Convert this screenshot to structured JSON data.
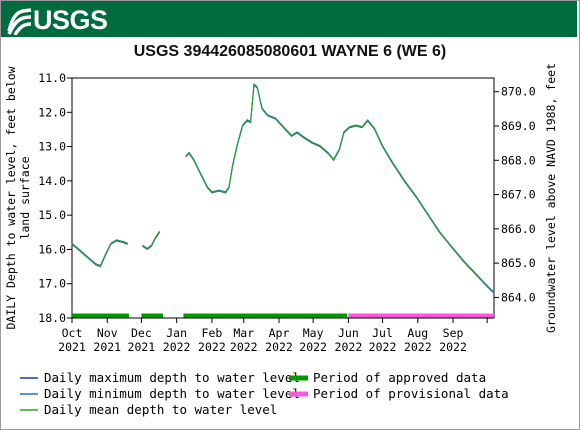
{
  "agency": "USGS",
  "chart_data": {
    "type": "line",
    "title": "USGS 394426085080601 WAYNE 6 (WE 6)",
    "ylabel": "DAILY Depth to water level, feet below land surface",
    "ylabel_lines": [
      "DAILY Depth to water level, feet below",
      "land surface"
    ],
    "y2label": "Groundwater level above NAVD 1988, feet",
    "ylim": [
      18.0,
      11.0
    ],
    "y_inverted": true,
    "y_ticks": [
      "11.0",
      "12.0",
      "13.0",
      "14.0",
      "15.0",
      "16.0",
      "17.0",
      "18.0"
    ],
    "y2lim": [
      863.4,
      870.4
    ],
    "y2_ticks": [
      "864.0",
      "865.0",
      "866.0",
      "867.0",
      "868.0",
      "869.0",
      "870.0"
    ],
    "x_ticks": [
      {
        "month": "Oct",
        "year": "2021"
      },
      {
        "month": "Nov",
        "year": "2021"
      },
      {
        "month": "Dec",
        "year": "2021"
      },
      {
        "month": "Jan",
        "year": "2022"
      },
      {
        "month": "Feb",
        "year": "2022"
      },
      {
        "month": "Mar",
        "year": "2022"
      },
      {
        "month": "Apr",
        "year": "2022"
      },
      {
        "month": "May",
        "year": "2022"
      },
      {
        "month": "Jun",
        "year": "2022"
      },
      {
        "month": "Jul",
        "year": "2022"
      },
      {
        "month": "Aug",
        "year": "2022"
      },
      {
        "month": "Sep",
        "year": "2022"
      }
    ],
    "xlim": [
      "2021-10-01",
      "2022-10-07"
    ],
    "grid": false,
    "series": [
      {
        "name": "Daily maximum depth to water level",
        "color": "#1f3a93",
        "segments": [
          [
            [
              "2021-10-01",
              15.85
            ],
            [
              "2021-10-08",
              16.05
            ],
            [
              "2021-10-15",
              16.25
            ],
            [
              "2021-10-22",
              16.45
            ],
            [
              "2021-10-26",
              16.5
            ],
            [
              "2021-10-30",
              16.2
            ],
            [
              "2021-11-04",
              15.85
            ],
            [
              "2021-11-09",
              15.75
            ],
            [
              "2021-11-15",
              15.8
            ],
            [
              "2021-11-19",
              15.85
            ]
          ],
          [
            [
              "2021-12-02",
              15.9
            ],
            [
              "2021-12-06",
              16.0
            ],
            [
              "2021-12-10",
              15.9
            ],
            [
              "2021-12-13",
              15.7
            ],
            [
              "2021-12-17",
              15.5
            ]
          ],
          [
            [
              "2022-01-09",
              13.3
            ],
            [
              "2022-01-12",
              13.2
            ],
            [
              "2022-01-16",
              13.4
            ],
            [
              "2022-01-22",
              13.8
            ],
            [
              "2022-01-28",
              14.2
            ],
            [
              "2022-02-01",
              14.35
            ],
            [
              "2022-02-07",
              14.3
            ],
            [
              "2022-02-13",
              14.35
            ],
            [
              "2022-02-16",
              14.2
            ],
            [
              "2022-02-19",
              13.6
            ],
            [
              "2022-02-23",
              13.0
            ],
            [
              "2022-02-28",
              12.4
            ],
            [
              "2022-03-04",
              12.25
            ],
            [
              "2022-03-07",
              12.3
            ],
            [
              "2022-03-10",
              11.2
            ],
            [
              "2022-03-13",
              11.3
            ],
            [
              "2022-03-17",
              11.9
            ],
            [
              "2022-03-22",
              12.1
            ],
            [
              "2022-03-29",
              12.2
            ],
            [
              "2022-04-05",
              12.45
            ],
            [
              "2022-04-12",
              12.7
            ],
            [
              "2022-04-17",
              12.6
            ],
            [
              "2022-04-23",
              12.75
            ],
            [
              "2022-04-30",
              12.9
            ],
            [
              "2022-05-07",
              13.0
            ],
            [
              "2022-05-14",
              13.2
            ],
            [
              "2022-05-19",
              13.4
            ],
            [
              "2022-05-24",
              13.1
            ],
            [
              "2022-05-28",
              12.6
            ],
            [
              "2022-06-02",
              12.45
            ],
            [
              "2022-06-08",
              12.4
            ],
            [
              "2022-06-13",
              12.45
            ],
            [
              "2022-06-18",
              12.25
            ],
            [
              "2022-06-24",
              12.5
            ],
            [
              "2022-07-01",
              13.0
            ],
            [
              "2022-07-10",
              13.5
            ],
            [
              "2022-07-20",
              14.0
            ],
            [
              "2022-07-31",
              14.5
            ],
            [
              "2022-08-10",
              15.0
            ],
            [
              "2022-08-20",
              15.5
            ],
            [
              "2022-08-31",
              15.95
            ],
            [
              "2022-09-10",
              16.35
            ],
            [
              "2022-09-20",
              16.7
            ],
            [
              "2022-09-30",
              17.05
            ],
            [
              "2022-10-06",
              17.25
            ]
          ]
        ]
      },
      {
        "name": "Daily minimum depth to water level",
        "color": "#1f77b4",
        "segments": [
          [
            [
              "2021-10-01",
              15.82
            ],
            [
              "2021-10-08",
              16.02
            ],
            [
              "2021-10-15",
              16.22
            ],
            [
              "2021-10-22",
              16.42
            ],
            [
              "2021-10-26",
              16.47
            ],
            [
              "2021-10-30",
              16.17
            ],
            [
              "2021-11-04",
              15.82
            ],
            [
              "2021-11-09",
              15.72
            ],
            [
              "2021-11-15",
              15.77
            ],
            [
              "2021-11-19",
              15.82
            ]
          ],
          [
            [
              "2021-12-02",
              15.87
            ],
            [
              "2021-12-06",
              15.97
            ],
            [
              "2021-12-10",
              15.87
            ],
            [
              "2021-12-13",
              15.67
            ],
            [
              "2021-12-17",
              15.47
            ]
          ],
          [
            [
              "2022-01-09",
              13.27
            ],
            [
              "2022-01-12",
              13.17
            ],
            [
              "2022-01-16",
              13.37
            ],
            [
              "2022-01-22",
              13.77
            ],
            [
              "2022-01-28",
              14.17
            ],
            [
              "2022-02-01",
              14.32
            ],
            [
              "2022-02-07",
              14.27
            ],
            [
              "2022-02-13",
              14.32
            ],
            [
              "2022-02-16",
              14.17
            ],
            [
              "2022-02-19",
              13.57
            ],
            [
              "2022-02-23",
              12.97
            ],
            [
              "2022-02-28",
              12.37
            ],
            [
              "2022-03-04",
              12.22
            ],
            [
              "2022-03-07",
              12.27
            ],
            [
              "2022-03-10",
              11.17
            ],
            [
              "2022-03-13",
              11.27
            ],
            [
              "2022-03-17",
              11.87
            ],
            [
              "2022-03-22",
              12.07
            ],
            [
              "2022-03-29",
              12.17
            ],
            [
              "2022-04-05",
              12.42
            ],
            [
              "2022-04-12",
              12.67
            ],
            [
              "2022-04-17",
              12.57
            ],
            [
              "2022-04-23",
              12.72
            ],
            [
              "2022-04-30",
              12.87
            ],
            [
              "2022-05-07",
              12.97
            ],
            [
              "2022-05-14",
              13.17
            ],
            [
              "2022-05-19",
              13.37
            ],
            [
              "2022-05-24",
              13.07
            ],
            [
              "2022-05-28",
              12.57
            ],
            [
              "2022-06-02",
              12.42
            ],
            [
              "2022-06-08",
              12.37
            ],
            [
              "2022-06-13",
              12.42
            ],
            [
              "2022-06-18",
              12.22
            ],
            [
              "2022-06-24",
              12.47
            ],
            [
              "2022-07-01",
              12.97
            ],
            [
              "2022-07-10",
              13.47
            ],
            [
              "2022-07-20",
              13.97
            ],
            [
              "2022-07-31",
              14.47
            ],
            [
              "2022-08-10",
              14.97
            ],
            [
              "2022-08-20",
              15.47
            ],
            [
              "2022-08-31",
              15.92
            ],
            [
              "2022-09-10",
              16.32
            ],
            [
              "2022-09-20",
              16.67
            ],
            [
              "2022-09-30",
              17.02
            ],
            [
              "2022-10-06",
              17.22
            ]
          ]
        ]
      },
      {
        "name": "Daily mean depth to water level",
        "color": "#2ca02c",
        "segments": [
          [
            [
              "2021-10-01",
              15.84
            ],
            [
              "2021-10-08",
              16.04
            ],
            [
              "2021-10-15",
              16.24
            ],
            [
              "2021-10-22",
              16.44
            ],
            [
              "2021-10-26",
              16.49
            ],
            [
              "2021-10-30",
              16.19
            ],
            [
              "2021-11-04",
              15.84
            ],
            [
              "2021-11-09",
              15.74
            ],
            [
              "2021-11-15",
              15.79
            ],
            [
              "2021-11-19",
              15.84
            ]
          ],
          [
            [
              "2021-12-02",
              15.89
            ],
            [
              "2021-12-06",
              15.99
            ],
            [
              "2021-12-10",
              15.89
            ],
            [
              "2021-12-13",
              15.69
            ],
            [
              "2021-12-17",
              15.49
            ]
          ],
          [
            [
              "2022-01-09",
              13.29
            ],
            [
              "2022-01-12",
              13.19
            ],
            [
              "2022-01-16",
              13.39
            ],
            [
              "2022-01-22",
              13.79
            ],
            [
              "2022-01-28",
              14.19
            ],
            [
              "2022-02-01",
              14.34
            ],
            [
              "2022-02-07",
              14.29
            ],
            [
              "2022-02-13",
              14.34
            ],
            [
              "2022-02-16",
              14.19
            ],
            [
              "2022-02-19",
              13.59
            ],
            [
              "2022-02-23",
              12.99
            ],
            [
              "2022-02-28",
              12.39
            ],
            [
              "2022-03-04",
              12.24
            ],
            [
              "2022-03-07",
              12.29
            ],
            [
              "2022-03-10",
              11.19
            ],
            [
              "2022-03-13",
              11.29
            ],
            [
              "2022-03-17",
              11.89
            ],
            [
              "2022-03-22",
              12.09
            ],
            [
              "2022-03-29",
              12.19
            ],
            [
              "2022-04-05",
              12.44
            ],
            [
              "2022-04-12",
              12.69
            ],
            [
              "2022-04-17",
              12.59
            ],
            [
              "2022-04-23",
              12.74
            ],
            [
              "2022-04-30",
              12.89
            ],
            [
              "2022-05-07",
              12.99
            ],
            [
              "2022-05-14",
              13.19
            ],
            [
              "2022-05-19",
              13.39
            ],
            [
              "2022-05-24",
              13.09
            ],
            [
              "2022-05-28",
              12.59
            ],
            [
              "2022-06-02",
              12.44
            ],
            [
              "2022-06-08",
              12.39
            ],
            [
              "2022-06-13",
              12.44
            ],
            [
              "2022-06-18",
              12.24
            ],
            [
              "2022-06-24",
              12.49
            ],
            [
              "2022-07-01",
              12.99
            ],
            [
              "2022-07-10",
              13.49
            ],
            [
              "2022-07-20",
              13.99
            ],
            [
              "2022-07-31",
              14.49
            ],
            [
              "2022-08-10",
              14.99
            ],
            [
              "2022-08-20",
              15.49
            ],
            [
              "2022-08-31",
              15.94
            ],
            [
              "2022-09-10",
              16.34
            ],
            [
              "2022-09-20",
              16.69
            ],
            [
              "2022-09-30",
              17.04
            ],
            [
              "2022-10-06",
              17.24
            ]
          ]
        ]
      }
    ],
    "periods": [
      {
        "name": "Period of approved data",
        "color": "#009900",
        "spans": [
          [
            "2021-10-01",
            "2021-11-20"
          ],
          [
            "2021-12-01",
            "2021-12-20"
          ],
          [
            "2022-01-07",
            "2022-05-31"
          ]
        ]
      },
      {
        "name": "Period of provisional data",
        "color": "#ff55dd",
        "spans": [
          [
            "2022-06-01",
            "2022-10-07"
          ]
        ]
      }
    ],
    "legend_position": "bottom"
  }
}
